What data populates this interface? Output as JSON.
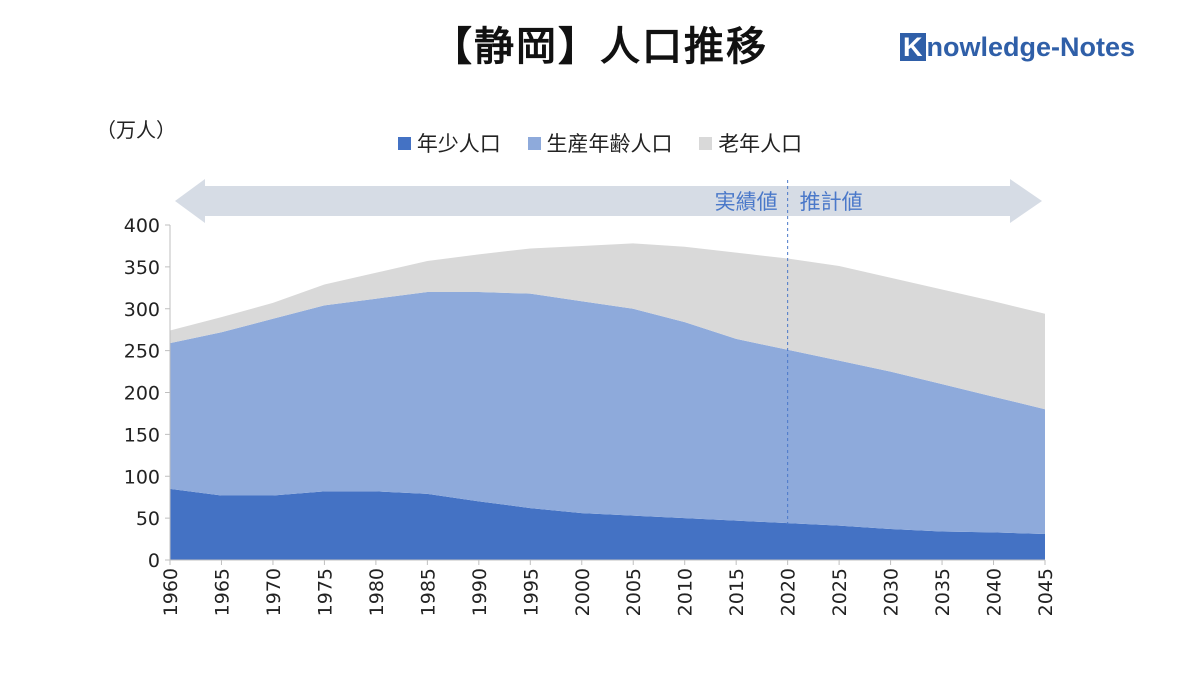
{
  "title": "【静岡】人口推移",
  "brand": {
    "first_letter": "K",
    "rest": "nowledge-Notes"
  },
  "unit_label": "（万人）",
  "chart_data": {
    "type": "area",
    "stacked": true,
    "title": "【静岡】人口推移",
    "ylabel": "（万人）",
    "ylim": [
      0,
      400
    ],
    "yticks": [
      0,
      50,
      100,
      150,
      200,
      250,
      300,
      350,
      400
    ],
    "x": [
      1960,
      1965,
      1970,
      1975,
      1980,
      1985,
      1990,
      1995,
      2000,
      2005,
      2010,
      2015,
      2020,
      2025,
      2030,
      2035,
      2040,
      2045
    ],
    "series": [
      {
        "name": "年少人口",
        "color": "#4472c4",
        "values": [
          85,
          77,
          77,
          82,
          82,
          79,
          70,
          62,
          56,
          53,
          50,
          47,
          44,
          41,
          37,
          34,
          33,
          31
        ]
      },
      {
        "name": "生産年齢人口",
        "color": "#8eaadb",
        "values": [
          174,
          195,
          211,
          222,
          230,
          241,
          250,
          256,
          253,
          247,
          234,
          217,
          207,
          197,
          188,
          176,
          162,
          149
        ]
      },
      {
        "name": "老年人口",
        "color": "#d9d9d9",
        "values": [
          15,
          18,
          19,
          25,
          31,
          37,
          45,
          54,
          66,
          78,
          90,
          103,
          109,
          113,
          112,
          113,
          114,
          114
        ]
      }
    ],
    "legend_position": "top-center",
    "divider_x": 2020,
    "ranges": {
      "actual": "実績値",
      "projection": "推計値"
    }
  }
}
